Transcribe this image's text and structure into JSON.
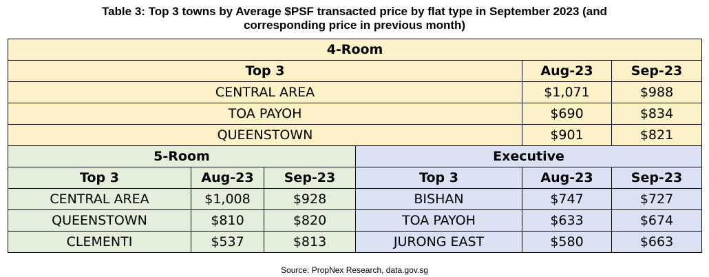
{
  "title_line1": "Table 3: Top 3 towns by Average $PSF transacted price by flat type in September 2023 (and",
  "title_line2": "corresponding price in previous month)",
  "four_room": {
    "heading": "4-Room",
    "col_top3": "Top 3",
    "col_aug": "Aug-23",
    "col_sep": "Sep-23",
    "rows": [
      {
        "town": "CENTRAL AREA",
        "aug": "$1,071",
        "sep": "$988"
      },
      {
        "town": "TOA PAYOH",
        "aug": "$690",
        "sep": "$834"
      },
      {
        "town": "QUEENSTOWN",
        "aug": "$901",
        "sep": "$821"
      }
    ]
  },
  "five_room": {
    "heading": "5-Room",
    "col_top3": "Top 3",
    "col_aug": "Aug-23",
    "col_sep": "Sep-23",
    "rows": [
      {
        "town": "CENTRAL AREA",
        "aug": "$1,008",
        "sep": "$928"
      },
      {
        "town": "QUEENSTOWN",
        "aug": "$810",
        "sep": "$820"
      },
      {
        "town": "CLEMENTI",
        "aug": "$537",
        "sep": "$813"
      }
    ]
  },
  "executive": {
    "heading": "Executive",
    "col_top3": "Top 3",
    "col_aug": "Aug-23",
    "col_sep": "Sep-23",
    "rows": [
      {
        "town": "BISHAN",
        "aug": "$747",
        "sep": "$727"
      },
      {
        "town": "TOA PAYOH",
        "aug": "$633",
        "sep": "$674"
      },
      {
        "town": "JURONG EAST",
        "aug": "$580",
        "sep": "$663"
      }
    ]
  },
  "source": "Source: PropNex Research, data.gov.sg",
  "colors": {
    "four_room_bg": "#fdf1c7",
    "five_room_bg": "#e3eedb",
    "executive_bg": "#d9e1f2"
  }
}
